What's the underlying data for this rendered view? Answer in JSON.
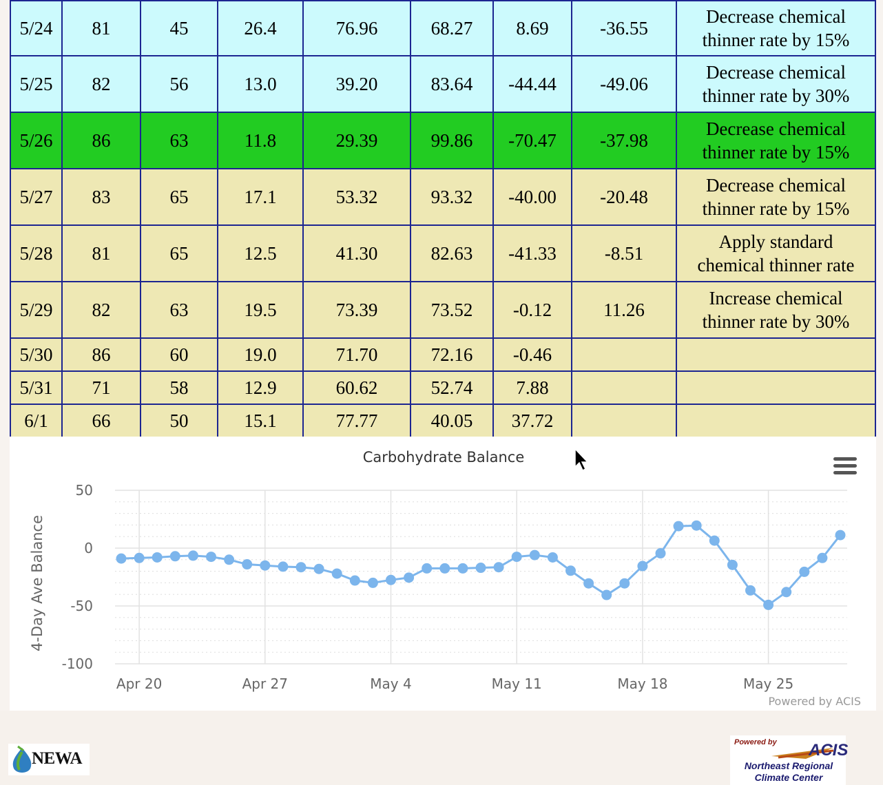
{
  "table": {
    "rows": [
      {
        "date": "5/24",
        "max": "81",
        "min": "45",
        "solar": "26.4",
        "production": "76.96",
        "demand": "68.27",
        "balance": "8.69",
        "ave_balance": "-36.55",
        "rec1": "Decrease chemical",
        "rec2": "thinner rate by 15%",
        "shade": "blue"
      },
      {
        "date": "5/25",
        "max": "82",
        "min": "56",
        "solar": "13.0",
        "production": "39.20",
        "demand": "83.64",
        "balance": "-44.44",
        "ave_balance": "-49.06",
        "rec1": "Decrease chemical",
        "rec2": "thinner rate by 30%",
        "shade": "blue"
      },
      {
        "date": "5/26",
        "max": "86",
        "min": "63",
        "solar": "11.8",
        "production": "29.39",
        "demand": "99.86",
        "balance": "-70.47",
        "ave_balance": "-37.98",
        "rec1": "Decrease chemical",
        "rec2": "thinner rate by 15%",
        "shade": "green"
      },
      {
        "date": "5/27",
        "max": "83",
        "min": "65",
        "solar": "17.1",
        "production": "53.32",
        "demand": "93.32",
        "balance": "-40.00",
        "ave_balance": "-20.48",
        "rec1": "Decrease chemical",
        "rec2": "thinner rate by 15%",
        "shade": "tan"
      },
      {
        "date": "5/28",
        "max": "81",
        "min": "65",
        "solar": "12.5",
        "production": "41.30",
        "demand": "82.63",
        "balance": "-41.33",
        "ave_balance": "-8.51",
        "rec1": "Apply standard",
        "rec2": "chemical thinner rate",
        "shade": "tan"
      },
      {
        "date": "5/29",
        "max": "82",
        "min": "63",
        "solar": "19.5",
        "production": "73.39",
        "demand": "73.52",
        "balance": "-0.12",
        "ave_balance": "11.26",
        "rec1": "Increase chemical",
        "rec2": "thinner rate by 30%",
        "shade": "tan"
      },
      {
        "date": "5/30",
        "max": "86",
        "min": "60",
        "solar": "19.0",
        "production": "71.70",
        "demand": "72.16",
        "balance": "-0.46",
        "ave_balance": "",
        "rec1": "",
        "rec2": "",
        "shade": "tan"
      },
      {
        "date": "5/31",
        "max": "71",
        "min": "58",
        "solar": "12.9",
        "production": "60.62",
        "demand": "52.74",
        "balance": "7.88",
        "ave_balance": "",
        "rec1": "",
        "rec2": "",
        "shade": "tan"
      },
      {
        "date": "6/1",
        "max": "66",
        "min": "50",
        "solar": "15.1",
        "production": "77.77",
        "demand": "40.05",
        "balance": "37.72",
        "ave_balance": "",
        "rec1": "",
        "rec2": "",
        "shade": "tan"
      }
    ]
  },
  "chart": {
    "menu_icon": "hamburger-menu-icon",
    "credit": "Powered by ACIS"
  },
  "chart_data": {
    "type": "line",
    "title": "Carbohydrate Balance",
    "xlabel": "",
    "ylabel": "4-Day Ave Balance",
    "ylim": [
      -100,
      50
    ],
    "yticks": [
      50,
      0,
      -50,
      -100
    ],
    "x_start": "Apr 19",
    "xticks": [
      "Apr 20",
      "Apr 27",
      "May 4",
      "May 11",
      "May 18",
      "May 25"
    ],
    "grid": true,
    "legend": "none",
    "series_color": "#7cb5ec",
    "series": [
      {
        "values": [
          -9,
          -8.5,
          -8,
          -7,
          -6.5,
          -7.5,
          -10,
          -14,
          -15,
          -16,
          -16.5,
          -18,
          -22,
          -28,
          -30,
          -27.5,
          -25.5,
          -17.5,
          -17.5,
          -17.5,
          -17,
          -16.5,
          -7.5,
          -6,
          -8,
          -19.5,
          -30.5,
          -40.5,
          -30.5,
          -15.5,
          -4.5,
          19,
          19.5,
          6.5,
          -14.5,
          -36.55,
          -49.06,
          -37.98,
          -20.48,
          -8.51,
          11.26
        ]
      }
    ]
  },
  "footer": {
    "newa_logo": "NEWA",
    "acis_powered": "Powered by",
    "acis_mark": "ACIS",
    "acis_org_line1": "Northeast Regional",
    "acis_org_line2": "Climate Center"
  }
}
